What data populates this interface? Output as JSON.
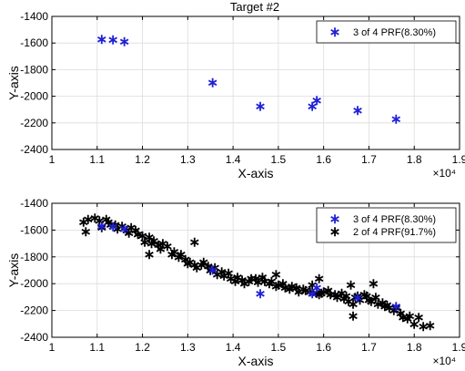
{
  "figure_title": "Target #2",
  "colors": {
    "series_blue": "#1f1fd6",
    "series_black": "#000000",
    "grid": "#dcdcdc",
    "axes": "#000000"
  },
  "chart_data": [
    {
      "type": "scatter",
      "title": "Target #2",
      "xlabel": "X-axis",
      "ylabel": "Y-axis",
      "xlim": [
        10000,
        19000
      ],
      "ylim": [
        -2400,
        -1400
      ],
      "x_ticks": [
        10000,
        11000,
        12000,
        13000,
        14000,
        15000,
        16000,
        17000,
        18000,
        19000
      ],
      "x_tick_labels": [
        "1",
        "1.1",
        "1.2",
        "1.3",
        "1.4",
        "1.5",
        "1.6",
        "1.7",
        "1.8",
        "1.9"
      ],
      "y_ticks": [
        -2400,
        -2200,
        -2000,
        -1800,
        -1600,
        -1400
      ],
      "y_tick_labels": [
        "-2400",
        "-2200",
        "-2000",
        "-1800",
        "-1600",
        "-1400"
      ],
      "x_exponent_label": "×10⁴",
      "grid": true,
      "legend_position": "top-right",
      "series": [
        {
          "name": "3 of 4 PRF(8.30%)",
          "color": "#1f1fd6",
          "marker": "*",
          "x": [
            11100,
            11350,
            11600,
            13550,
            14600,
            15750,
            15850,
            16750,
            17600
          ],
          "y": [
            -1570,
            -1575,
            -1590,
            -1895,
            -2075,
            -2075,
            -2030,
            -2105,
            -2170
          ]
        }
      ]
    },
    {
      "type": "scatter",
      "title": "",
      "xlabel": "X-axis",
      "ylabel": "Y-axis",
      "xlim": [
        10000,
        19000
      ],
      "ylim": [
        -2400,
        -1400
      ],
      "x_ticks": [
        10000,
        11000,
        12000,
        13000,
        14000,
        15000,
        16000,
        17000,
        18000,
        19000
      ],
      "x_tick_labels": [
        "1",
        "1.1",
        "1.2",
        "1.3",
        "1.4",
        "1.5",
        "1.6",
        "1.7",
        "1.8",
        "1.9"
      ],
      "y_ticks": [
        -2400,
        -2200,
        -2000,
        -1800,
        -1600,
        -1400
      ],
      "y_tick_labels": [
        "-2400",
        "-2200",
        "-2000",
        "-1800",
        "-1600",
        "-1400"
      ],
      "x_exponent_label": "×10⁴",
      "grid": true,
      "legend_position": "top-right",
      "series": [
        {
          "name": "3 of 4 PRF(8.30%)",
          "color": "#1f1fd6",
          "marker": "*",
          "x": [
            11100,
            11350,
            11600,
            13550,
            14600,
            15750,
            15850,
            16750,
            17600
          ],
          "y": [
            -1570,
            -1575,
            -1590,
            -1895,
            -2075,
            -2075,
            -2030,
            -2105,
            -2170
          ]
        },
        {
          "name": "2 of 4 PRF(91.7%)",
          "color": "#000000",
          "marker": "*",
          "x": [
            10700,
            10750,
            10800,
            10950,
            11050,
            11100,
            11200,
            11250,
            11300,
            11400,
            11450,
            11550,
            11650,
            11700,
            11750,
            11850,
            11900,
            12000,
            12050,
            12150,
            12200,
            12250,
            12350,
            12400,
            12450,
            12550,
            12650,
            12700,
            12800,
            12850,
            12950,
            13000,
            13050,
            13150,
            13200,
            13300,
            13350,
            13450,
            13500,
            13600,
            13650,
            13750,
            13800,
            13900,
            13950,
            14050,
            14100,
            14200,
            14250,
            14350,
            14400,
            14500,
            14550,
            14650,
            14700,
            14800,
            14850,
            14950,
            15000,
            15100,
            15150,
            15250,
            15300,
            15400,
            15450,
            15550,
            15600,
            15700,
            15750,
            15850,
            15900,
            15950,
            16000,
            16100,
            16150,
            16250,
            16300,
            16400,
            16450,
            16500,
            16550,
            16650,
            16700,
            16750,
            16800,
            16900,
            16950,
            17000,
            17050,
            17150,
            17200,
            17300,
            17350,
            17400,
            17450,
            17550,
            17600,
            17700,
            17750,
            17850,
            17900,
            18000,
            18100,
            18200,
            18350,
            13150,
            12150,
            15900,
            16600,
            17100,
            16650,
            14950
          ],
          "y": [
            -1540,
            -1610,
            -1520,
            -1510,
            -1530,
            -1580,
            -1520,
            -1540,
            -1560,
            -1560,
            -1590,
            -1570,
            -1600,
            -1620,
            -1580,
            -1600,
            -1630,
            -1640,
            -1690,
            -1650,
            -1700,
            -1680,
            -1710,
            -1740,
            -1700,
            -1720,
            -1780,
            -1760,
            -1800,
            -1780,
            -1820,
            -1850,
            -1840,
            -1860,
            -1880,
            -1860,
            -1840,
            -1870,
            -1900,
            -1880,
            -1930,
            -1910,
            -1940,
            -1920,
            -1960,
            -1980,
            -1950,
            -1970,
            -2000,
            -1980,
            -1960,
            -1960,
            -1990,
            -1950,
            -1980,
            -2000,
            -1980,
            -2020,
            -2010,
            -2000,
            -2030,
            -2040,
            -2020,
            -2030,
            -2060,
            -2040,
            -2050,
            -2060,
            -2010,
            -2070,
            -2080,
            -2070,
            -2060,
            -2050,
            -2080,
            -2080,
            -2100,
            -2070,
            -2110,
            -2090,
            -2130,
            -2150,
            -2100,
            -2090,
            -2120,
            -2080,
            -2090,
            -2120,
            -2130,
            -2100,
            -2150,
            -2140,
            -2170,
            -2160,
            -2180,
            -2200,
            -2180,
            -2220,
            -2250,
            -2260,
            -2240,
            -2300,
            -2250,
            -2320,
            -2310,
            -1690,
            -1780,
            -1960,
            -2010,
            -2000,
            -2240,
            -1930
          ]
        }
      ]
    }
  ]
}
